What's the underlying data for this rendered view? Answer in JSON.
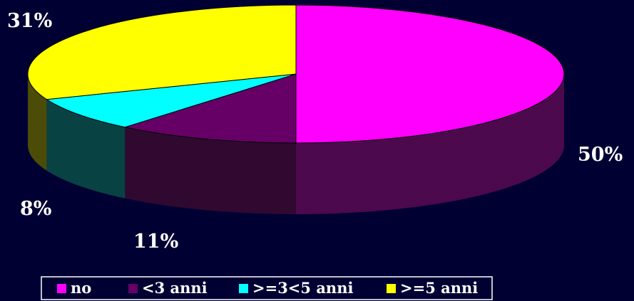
{
  "chart_data": {
    "type": "pie",
    "three_d": true,
    "categories": [
      "no",
      "<3 anni",
      ">=3<5 anni",
      ">=5 anni"
    ],
    "values": [
      50,
      11,
      8,
      31
    ],
    "unit": "%",
    "data_labels": [
      "50%",
      "11%",
      "8%",
      "31%"
    ],
    "colors": [
      "#ff00ff",
      "#660066",
      "#00ffff",
      "#ffff00"
    ],
    "side_colors": [
      "#5c0a5c",
      "#3a0a3a",
      "#0a5050",
      "#5c5c0a"
    ],
    "legend_position": "bottom",
    "background": "#000033"
  }
}
